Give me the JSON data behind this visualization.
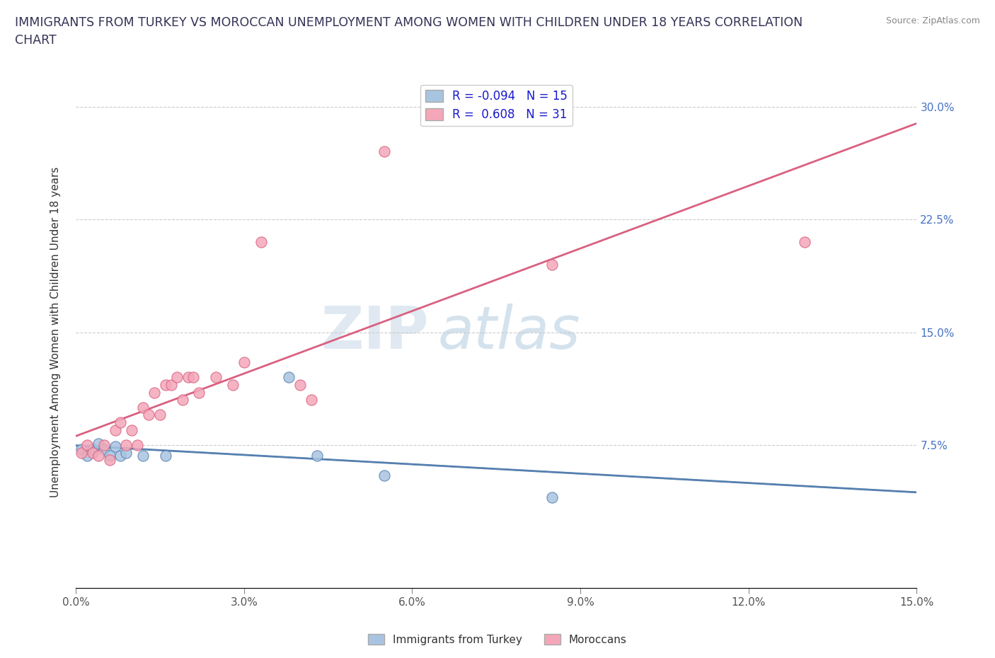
{
  "title": "IMMIGRANTS FROM TURKEY VS MOROCCAN UNEMPLOYMENT AMONG WOMEN WITH CHILDREN UNDER 18 YEARS CORRELATION\nCHART",
  "source_text": "Source: ZipAtlas.com",
  "ylabel": "Unemployment Among Women with Children Under 18 years",
  "xlim": [
    0.0,
    0.15
  ],
  "ylim": [
    -0.02,
    0.32
  ],
  "xticks": [
    0.0,
    0.03,
    0.06,
    0.09,
    0.12,
    0.15
  ],
  "xticklabels": [
    "0.0%",
    "3.0%",
    "6.0%",
    "9.0%",
    "12.0%",
    "15.0%"
  ],
  "ytick_positions": [
    0.0,
    0.075,
    0.15,
    0.225,
    0.3
  ],
  "yticklabels": [
    "",
    "7.5%",
    "15.0%",
    "22.5%",
    "30.0%"
  ],
  "legend_r_turkey": "-0.094",
  "legend_n_turkey": "15",
  "legend_r_moroccan": "0.608",
  "legend_n_moroccan": "31",
  "turkey_color": "#a8c4e0",
  "moroccan_color": "#f4a7b9",
  "turkey_line_color": "#5580b0",
  "moroccan_line_color": "#d96080",
  "watermark_zip": "ZIP",
  "watermark_atlas": "atlas",
  "turkey_scatter": [
    [
      0.001,
      0.072
    ],
    [
      0.002,
      0.068
    ],
    [
      0.003,
      0.072
    ],
    [
      0.004,
      0.076
    ],
    [
      0.005,
      0.072
    ],
    [
      0.006,
      0.068
    ],
    [
      0.007,
      0.074
    ],
    [
      0.008,
      0.068
    ],
    [
      0.009,
      0.07
    ],
    [
      0.012,
      0.068
    ],
    [
      0.016,
      0.068
    ],
    [
      0.038,
      0.12
    ],
    [
      0.043,
      0.068
    ],
    [
      0.055,
      0.055
    ],
    [
      0.085,
      0.04
    ]
  ],
  "moroccan_scatter": [
    [
      0.001,
      0.07
    ],
    [
      0.002,
      0.075
    ],
    [
      0.003,
      0.07
    ],
    [
      0.004,
      0.068
    ],
    [
      0.005,
      0.075
    ],
    [
      0.006,
      0.065
    ],
    [
      0.007,
      0.085
    ],
    [
      0.008,
      0.09
    ],
    [
      0.009,
      0.075
    ],
    [
      0.01,
      0.085
    ],
    [
      0.011,
      0.075
    ],
    [
      0.012,
      0.1
    ],
    [
      0.013,
      0.095
    ],
    [
      0.014,
      0.11
    ],
    [
      0.015,
      0.095
    ],
    [
      0.016,
      0.115
    ],
    [
      0.017,
      0.115
    ],
    [
      0.018,
      0.12
    ],
    [
      0.019,
      0.105
    ],
    [
      0.02,
      0.12
    ],
    [
      0.021,
      0.12
    ],
    [
      0.022,
      0.11
    ],
    [
      0.025,
      0.12
    ],
    [
      0.028,
      0.115
    ],
    [
      0.03,
      0.13
    ],
    [
      0.033,
      0.21
    ],
    [
      0.04,
      0.115
    ],
    [
      0.042,
      0.105
    ],
    [
      0.055,
      0.27
    ],
    [
      0.085,
      0.195
    ],
    [
      0.13,
      0.21
    ]
  ]
}
